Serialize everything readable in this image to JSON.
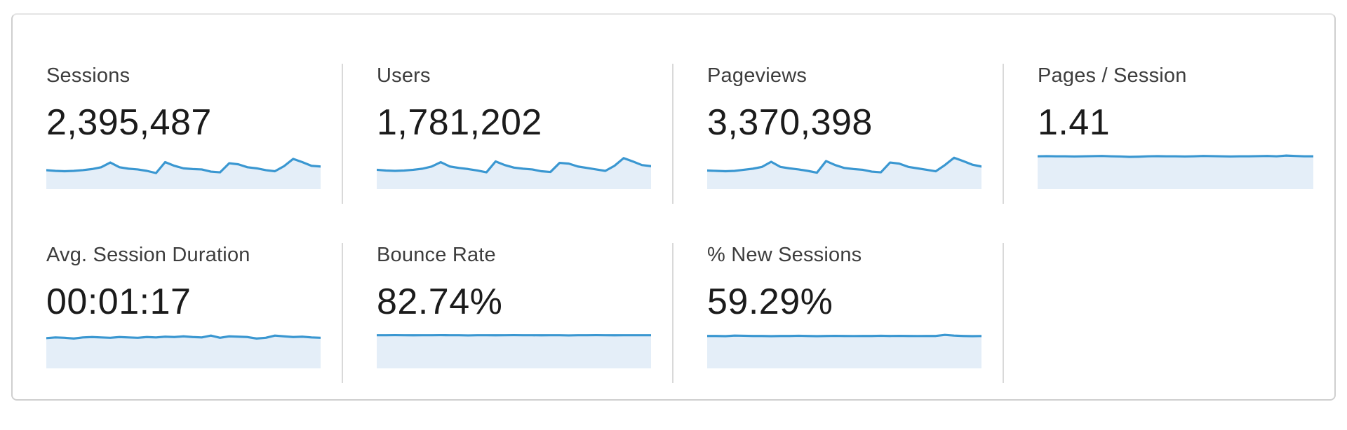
{
  "colors": {
    "spark_line": "#3a97d1",
    "spark_fill": "#e4eef8",
    "divider": "#d9d9d9",
    "card_border": "#cfcfcf",
    "label_text": "#3d3d3d",
    "value_text": "#1b1b1b"
  },
  "metrics": [
    {
      "id": "sessions",
      "label": "Sessions",
      "value": "2,395,487",
      "sparkline": [
        0.52,
        0.5,
        0.49,
        0.5,
        0.52,
        0.55,
        0.6,
        0.73,
        0.6,
        0.56,
        0.54,
        0.5,
        0.44,
        0.74,
        0.64,
        0.57,
        0.55,
        0.54,
        0.48,
        0.46,
        0.71,
        0.68,
        0.6,
        0.57,
        0.52,
        0.49,
        0.63,
        0.83,
        0.74,
        0.64,
        0.62
      ]
    },
    {
      "id": "users",
      "label": "Users",
      "value": "1,781,202",
      "sparkline": [
        0.53,
        0.51,
        0.5,
        0.51,
        0.53,
        0.56,
        0.62,
        0.74,
        0.62,
        0.58,
        0.55,
        0.51,
        0.46,
        0.76,
        0.66,
        0.59,
        0.56,
        0.54,
        0.49,
        0.47,
        0.72,
        0.7,
        0.62,
        0.58,
        0.54,
        0.5,
        0.64,
        0.85,
        0.76,
        0.66,
        0.63
      ]
    },
    {
      "id": "pageviews",
      "label": "Pageviews",
      "value": "3,370,398",
      "sparkline": [
        0.51,
        0.5,
        0.49,
        0.5,
        0.53,
        0.56,
        0.61,
        0.75,
        0.61,
        0.57,
        0.54,
        0.5,
        0.45,
        0.77,
        0.66,
        0.58,
        0.55,
        0.53,
        0.48,
        0.46,
        0.73,
        0.7,
        0.61,
        0.57,
        0.53,
        0.49,
        0.66,
        0.86,
        0.77,
        0.67,
        0.62
      ]
    },
    {
      "id": "pages-per-session",
      "label": "Pages / Session",
      "value": "1.41",
      "sparkline": [
        0.9,
        0.905,
        0.9,
        0.9,
        0.895,
        0.9,
        0.905,
        0.91,
        0.9,
        0.895,
        0.885,
        0.89,
        0.9,
        0.905,
        0.9,
        0.9,
        0.895,
        0.9,
        0.91,
        0.905,
        0.9,
        0.895,
        0.9,
        0.9,
        0.905,
        0.91,
        0.9,
        0.92,
        0.91,
        0.9,
        0.9
      ]
    },
    {
      "id": "avg-session-duration",
      "label": "Avg. Session Duration",
      "value": "00:01:17",
      "sparkline": [
        0.83,
        0.85,
        0.84,
        0.82,
        0.85,
        0.86,
        0.85,
        0.84,
        0.86,
        0.85,
        0.84,
        0.86,
        0.85,
        0.87,
        0.86,
        0.88,
        0.86,
        0.85,
        0.9,
        0.84,
        0.88,
        0.87,
        0.86,
        0.82,
        0.84,
        0.9,
        0.88,
        0.86,
        0.87,
        0.85,
        0.84
      ]
    },
    {
      "id": "bounce-rate",
      "label": "Bounce Rate",
      "value": "82.74%",
      "sparkline": [
        0.91,
        0.91,
        0.912,
        0.91,
        0.908,
        0.91,
        0.91,
        0.912,
        0.91,
        0.91,
        0.905,
        0.91,
        0.91,
        0.908,
        0.91,
        0.912,
        0.91,
        0.91,
        0.908,
        0.91,
        0.91,
        0.905,
        0.91,
        0.91,
        0.912,
        0.91,
        0.908,
        0.91,
        0.91,
        0.91,
        0.91
      ]
    },
    {
      "id": "new-sessions",
      "label": "% New Sessions",
      "value": "59.29%",
      "sparkline": [
        0.89,
        0.89,
        0.885,
        0.9,
        0.895,
        0.89,
        0.89,
        0.885,
        0.89,
        0.89,
        0.895,
        0.89,
        0.885,
        0.89,
        0.893,
        0.89,
        0.888,
        0.89,
        0.89,
        0.895,
        0.89,
        0.893,
        0.89,
        0.888,
        0.89,
        0.89,
        0.92,
        0.9,
        0.89,
        0.885,
        0.888
      ]
    }
  ]
}
